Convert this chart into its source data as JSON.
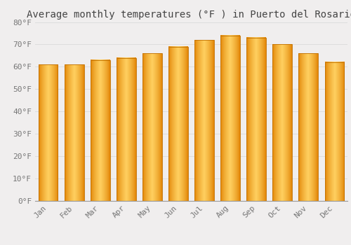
{
  "title": "Average monthly temperatures (°F ) in Puerto del Rosario",
  "months": [
    "Jan",
    "Feb",
    "Mar",
    "Apr",
    "May",
    "Jun",
    "Jul",
    "Aug",
    "Sep",
    "Oct",
    "Nov",
    "Dec"
  ],
  "values": [
    61,
    61,
    63,
    64,
    66,
    69,
    72,
    74,
    73,
    70,
    66,
    62
  ],
  "bar_color_light": "#FFD060",
  "bar_color_main": "#FFA800",
  "bar_color_dark": "#E08000",
  "bar_edge_color": "#C07000",
  "ylim": [
    0,
    80
  ],
  "yticks": [
    0,
    10,
    20,
    30,
    40,
    50,
    60,
    70,
    80
  ],
  "ytick_labels": [
    "0°F",
    "10°F",
    "20°F",
    "30°F",
    "40°F",
    "50°F",
    "60°F",
    "70°F",
    "80°F"
  ],
  "background_color": "#f0eeee",
  "plot_bg_color": "#f0eeee",
  "grid_color": "#dddddd",
  "title_fontsize": 10,
  "tick_fontsize": 8,
  "font_family": "monospace",
  "bar_width": 0.75
}
